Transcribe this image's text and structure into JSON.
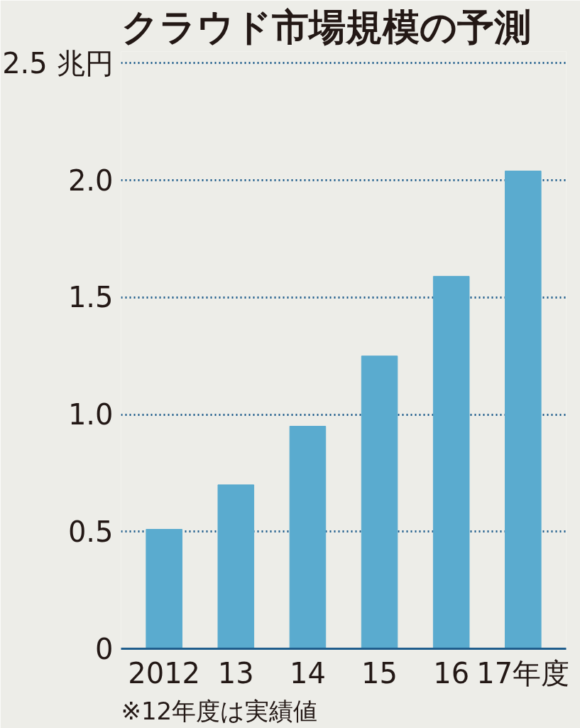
{
  "chart_data": {
    "type": "bar",
    "title": "クラウド市場規模の予測",
    "categories": [
      "2012",
      "13",
      "14",
      "15",
      "16",
      "17年度"
    ],
    "values": [
      0.51,
      0.7,
      0.95,
      1.25,
      1.59,
      2.04
    ],
    "color": "#5aabcf",
    "ylim": [
      0,
      2.55
    ],
    "yticks": [
      0,
      0.5,
      {
        "value": 1,
        "label": "1.0"
      },
      1.5,
      {
        "value": 2,
        "label": "2.0"
      },
      {
        "value": 2.5,
        "label": "2.5 兆円"
      }
    ],
    "grid": "y",
    "annotations": [
      "※12年度は実績値"
    ]
  }
}
